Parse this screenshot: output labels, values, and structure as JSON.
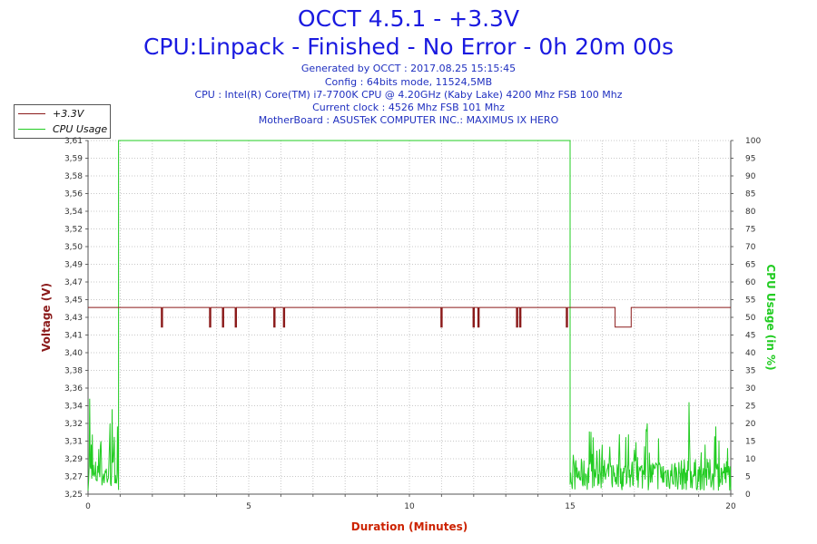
{
  "header": {
    "title_line1": "OCCT 4.5.1 - +3.3V",
    "title_line2": "CPU:Linpack - Finished - No Error - 0h 20m 00s",
    "info": [
      "Generated by OCCT : 2017.08.25 15:15:45",
      "Config : 64bits mode, 11524,5MB",
      "CPU : Intel(R) Core(TM) i7-7700K CPU @ 4.20GHz (Kaby Lake) 4200 Mhz FSB 100 Mhz",
      "Current clock : 4526 Mhz FSB 101 Mhz",
      "MotherBoard : ASUSTeK COMPUTER INC.: MAXIMUS IX HERO"
    ]
  },
  "legend": {
    "items": [
      {
        "label": "+3.3V",
        "color": "#8b1a1a"
      },
      {
        "label": "CPU Usage",
        "color": "#22cc22"
      }
    ]
  },
  "chart_data": {
    "type": "line",
    "xlabel": "Duration (Minutes)",
    "ylabel_left": "Voltage (V)",
    "ylabel_right": "CPU Usage (in %)",
    "xlim": [
      0,
      20
    ],
    "x_ticks": [
      0,
      5,
      10,
      15,
      20
    ],
    "ylim_left": [
      3.25,
      3.61
    ],
    "y_ticks_left": [
      "3,25",
      "3,27",
      "3,29",
      "3,31",
      "3,32",
      "3,34",
      "3,36",
      "3,38",
      "3,40",
      "3,41",
      "3,43",
      "3,45",
      "3,47",
      "3,49",
      "3,50",
      "3,52",
      "3,54",
      "3,56",
      "3,58",
      "3,59",
      "3,61"
    ],
    "ylim_right": [
      0,
      100
    ],
    "y_ticks_right": [
      0,
      5,
      10,
      15,
      20,
      25,
      30,
      35,
      40,
      45,
      50,
      55,
      60,
      65,
      70,
      75,
      80,
      85,
      90,
      95,
      100
    ],
    "grid": true,
    "legend_position": "top-left",
    "colors": {
      "voltage": "#8b1a1a",
      "cpu": "#22cc22",
      "axis_left": "#8b1a1a",
      "axis_right": "#22cc22",
      "axis_x": "#cc2200"
    },
    "series": [
      {
        "name": "+3.3V",
        "axis": "left",
        "baseline": 3.44,
        "dips": [
          {
            "x": 2.3,
            "y": 3.42
          },
          {
            "x": 3.8,
            "y": 3.42
          },
          {
            "x": 4.2,
            "y": 3.42
          },
          {
            "x": 4.6,
            "y": 3.42
          },
          {
            "x": 5.8,
            "y": 3.42
          },
          {
            "x": 6.1,
            "y": 3.42
          },
          {
            "x": 11.0,
            "y": 3.42
          },
          {
            "x": 12.0,
            "y": 3.42
          },
          {
            "x": 12.15,
            "y": 3.42
          },
          {
            "x": 13.35,
            "y": 3.42
          },
          {
            "x": 13.45,
            "y": 3.42
          },
          {
            "x": 14.9,
            "y": 3.42
          }
        ],
        "low_segment": {
          "x_start": 16.4,
          "x_end": 16.9,
          "y": 3.42
        }
      },
      {
        "name": "CPU Usage",
        "axis": "right",
        "segments": [
          {
            "x_start": 0.0,
            "x_end": 0.95,
            "level": "idle",
            "approx_range": [
              0,
              26
            ]
          },
          {
            "x_start": 0.95,
            "x_end": 15.0,
            "level": 100
          },
          {
            "x_start": 15.0,
            "x_end": 20.0,
            "level": "idle",
            "approx_range": [
              0,
              26
            ]
          }
        ],
        "idle_samples": [
          {
            "x": 0.05,
            "y": 27
          },
          {
            "x": 0.1,
            "y": 14
          },
          {
            "x": 0.2,
            "y": 5
          },
          {
            "x": 0.3,
            "y": 8
          },
          {
            "x": 0.4,
            "y": 15
          },
          {
            "x": 0.55,
            "y": 6
          },
          {
            "x": 0.75,
            "y": 24
          },
          {
            "x": 0.9,
            "y": 5
          },
          {
            "x": 16.0,
            "y": 14
          },
          {
            "x": 17.4,
            "y": 20
          },
          {
            "x": 18.7,
            "y": 26
          },
          {
            "x": 19.2,
            "y": 14
          },
          {
            "x": 19.9,
            "y": 13
          }
        ]
      }
    ]
  }
}
